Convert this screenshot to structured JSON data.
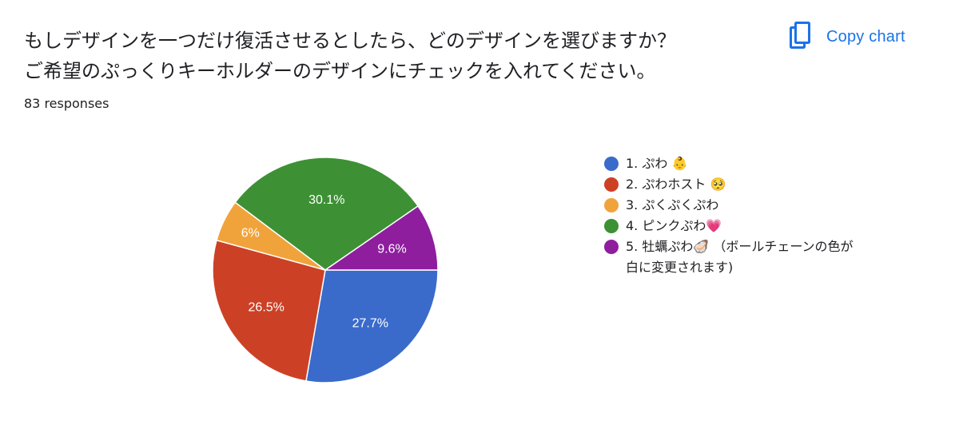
{
  "question": {
    "line1": "もしデザインを一つだけ復活させるとしたら、どのデザインを選びますか？",
    "line2": "ご希望のぷっくりキーホルダーのデザインにチェックを入れてください。"
  },
  "response_count": "83 responses",
  "toolbar": {
    "copy_chart_label": "Copy chart",
    "copy_icon": "copy-icon"
  },
  "colors": {
    "accent": "#1a73e8",
    "series": [
      "#3a6bcb",
      "#cc4125",
      "#f1a33b",
      "#3d9134",
      "#8e1e9e"
    ]
  },
  "chart_data": {
    "type": "pie",
    "categories": [
      "1. ぷわ 👶",
      "2. ぷわホスト 🥺",
      "3. ぷくぷくぷわ",
      "4. ピンクぷわ💗",
      "5. 牡蠣ぷわ🦪 （ボールチェーンの色が\n白に変更されます)"
    ],
    "values": [
      27.7,
      26.5,
      6.0,
      30.1,
      9.6
    ],
    "labels": [
      "27.7%",
      "26.5%",
      "6%",
      "30.1%",
      "9.6%"
    ],
    "order": [
      0,
      1,
      2,
      3,
      4
    ],
    "start": "east",
    "direction": "clockwise",
    "legend_position": "right"
  }
}
